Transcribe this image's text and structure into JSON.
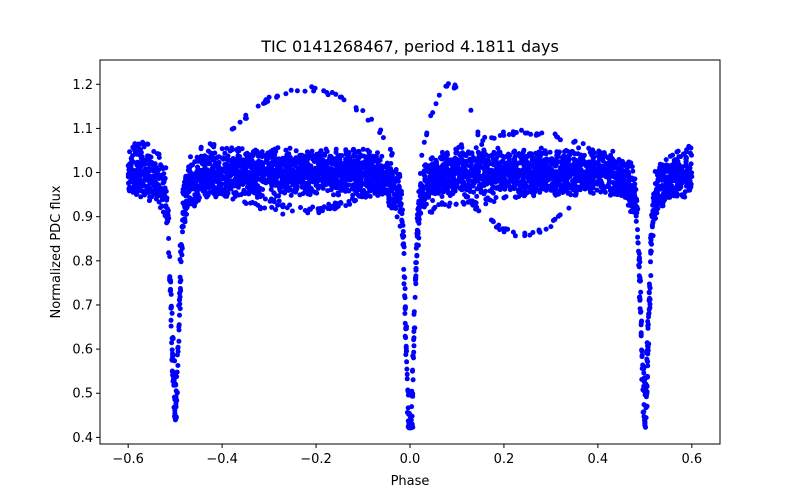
{
  "chart_data": {
    "type": "scatter",
    "title": "TIC 0141268467, period 4.1811 days",
    "xlabel": "Phase",
    "ylabel": "Normalized PDC flux",
    "xlim": [
      -0.66,
      0.66
    ],
    "ylim": [
      0.385,
      1.255
    ],
    "xticks": [
      -0.6,
      -0.4,
      -0.2,
      0.0,
      0.2,
      0.4,
      0.6
    ],
    "xtick_labels": [
      "−0.6",
      "−0.4",
      "−0.2",
      "0.0",
      "0.2",
      "0.4",
      "0.6"
    ],
    "yticks": [
      0.4,
      0.5,
      0.6,
      0.7,
      0.8,
      0.9,
      1.0,
      1.1,
      1.2
    ],
    "ytick_labels": [
      "0.4",
      "0.5",
      "0.6",
      "0.7",
      "0.8",
      "0.9",
      "1.0",
      "1.1",
      "1.2"
    ],
    "grid": false,
    "marker_color": "#0000ff",
    "features": {
      "baseline_flux_band": [
        0.97,
        1.08
      ],
      "primary_eclipse": {
        "phase": 0.0,
        "min_flux": 0.42
      },
      "secondary_eclipses": [
        {
          "phase": -0.5,
          "min_flux": 0.49
        },
        {
          "phase": 0.5,
          "min_flux": 0.49
        }
      ],
      "upper_arcs": [
        {
          "phase": -0.22,
          "max_flux": 1.2
        },
        {
          "phase": 0.07,
          "max_flux": 1.21
        }
      ],
      "lower_arcs": [
        {
          "phase": -0.2,
          "min_flux": 0.94
        },
        {
          "phase": 0.24,
          "min_flux": 0.87
        }
      ]
    }
  }
}
